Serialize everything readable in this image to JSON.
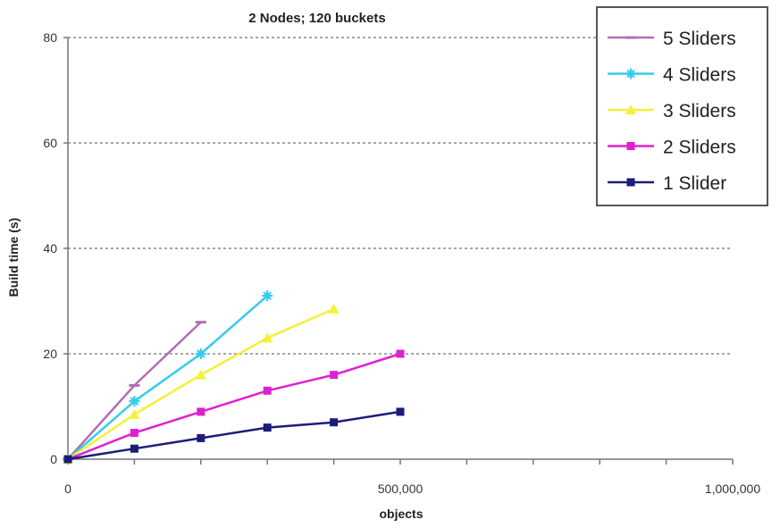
{
  "chart_data": {
    "type": "line",
    "title": "2 Nodes; 120 buckets",
    "xlabel": "objects",
    "ylabel": "Build time (s)",
    "xlim": [
      0,
      1000000
    ],
    "ylim": [
      0,
      80
    ],
    "x_ticks": [
      0,
      500000,
      1000000
    ],
    "x_tick_labels": [
      "0",
      "500,000",
      "1,000,000"
    ],
    "y_ticks": [
      0,
      20,
      40,
      60,
      80
    ],
    "y_tick_labels": [
      "0",
      "20",
      "40",
      "60",
      "80"
    ],
    "grid": "horizontal dashed",
    "legend_position": "top-right",
    "series": [
      {
        "name": "5 Sliders",
        "color": "#b070b0",
        "marker": "dash",
        "x": [
          0,
          100000,
          200000
        ],
        "y": [
          0,
          14,
          26
        ]
      },
      {
        "name": "4 Sliders",
        "color": "#33ccee",
        "marker": "star",
        "x": [
          0,
          100000,
          200000,
          300000
        ],
        "y": [
          0,
          11,
          20,
          31
        ]
      },
      {
        "name": "3 Sliders",
        "color": "#f5f03a",
        "marker": "triangle",
        "x": [
          0,
          100000,
          200000,
          300000,
          400000
        ],
        "y": [
          0,
          8.5,
          16,
          23,
          28.5
        ]
      },
      {
        "name": "2 Sliders",
        "color": "#e020d0",
        "marker": "square",
        "x": [
          0,
          100000,
          200000,
          300000,
          400000,
          500000
        ],
        "y": [
          0,
          5,
          9,
          13,
          16,
          20
        ]
      },
      {
        "name": "1 Slider",
        "color": "#1c1c7a",
        "marker": "square",
        "x": [
          0,
          100000,
          200000,
          300000,
          400000,
          500000
        ],
        "y": [
          0,
          2,
          4,
          6,
          7,
          9
        ]
      }
    ]
  }
}
